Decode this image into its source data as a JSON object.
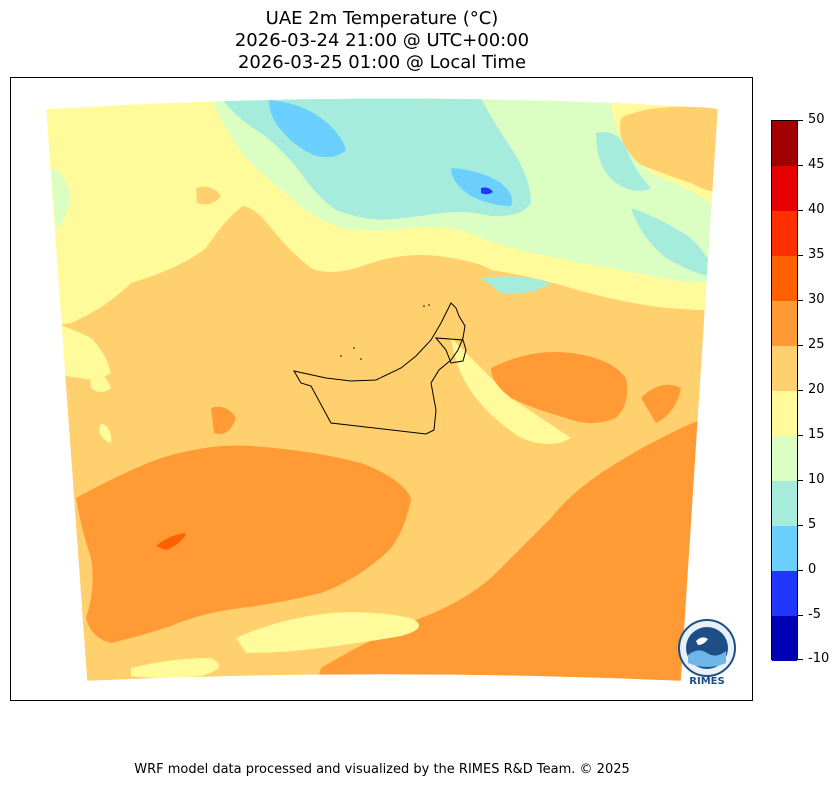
{
  "title": {
    "line1": "UAE 2m Temperature (°C)",
    "line2": "2026-03-24 21:00 @ UTC+00:00",
    "line3": "2026-03-25 01:00 @ Local Time"
  },
  "colorbar": {
    "ticks": [
      "50",
      "45",
      "40",
      "35",
      "30",
      "25",
      "20",
      "15",
      "10",
      "5",
      "0",
      "-5",
      "-10"
    ],
    "levels": [
      {
        "from": 45,
        "to": 50,
        "color": "#a10000"
      },
      {
        "from": 40,
        "to": 45,
        "color": "#e60000"
      },
      {
        "from": 35,
        "to": 40,
        "color": "#ff3000"
      },
      {
        "from": 30,
        "to": 35,
        "color": "#ff6000"
      },
      {
        "from": 25,
        "to": 30,
        "color": "#ff9a35"
      },
      {
        "from": 20,
        "to": 25,
        "color": "#ffd06d"
      },
      {
        "from": 15,
        "to": 20,
        "color": "#fffa9a"
      },
      {
        "from": 10,
        "to": 15,
        "color": "#dbffc2"
      },
      {
        "from": 5,
        "to": 10,
        "color": "#a5ecdc"
      },
      {
        "from": 0,
        "to": 5,
        "color": "#6bcfff"
      },
      {
        "from": -5,
        "to": 0,
        "color": "#2136ff"
      },
      {
        "from": -10,
        "to": -5,
        "color": "#0000b5"
      }
    ]
  },
  "logo": {
    "text": "RIMES"
  },
  "footer": {
    "credit": "WRF model data processed and visualized by the RIMES R&D Team. © 2025"
  }
}
